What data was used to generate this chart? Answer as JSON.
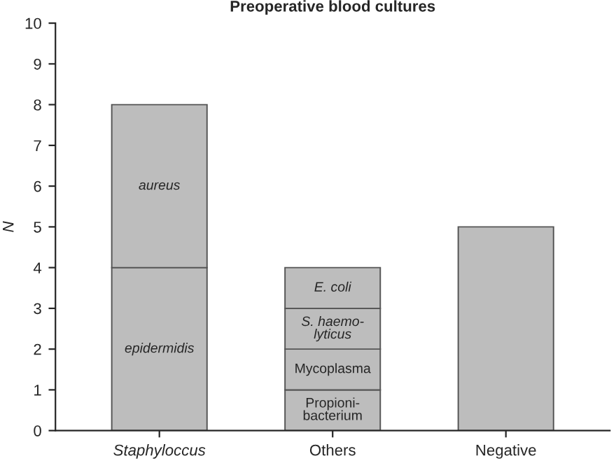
{
  "chart_data": {
    "type": "bar",
    "title": "Preoperative blood cultures",
    "ylabel": "N",
    "categories": [
      "Staphyloccus",
      "Others",
      "Negative"
    ],
    "stacked": true,
    "series": [
      {
        "name": "epidermidis",
        "color": "#bdbdbd",
        "values": [
          4,
          null,
          null
        ]
      },
      {
        "name": "aureus",
        "color": "#bdbdbd",
        "values": [
          4,
          null,
          null
        ]
      },
      {
        "name": "Propioni-\nbacterium",
        "color": "#bdbdbd",
        "values": [
          null,
          1,
          null
        ]
      },
      {
        "name": "Mycoplasma",
        "color": "#bdbdbd",
        "values": [
          null,
          1,
          null
        ]
      },
      {
        "name": "S. haemo-\nlyticus",
        "color": "#bdbdbd",
        "values": [
          null,
          1,
          null
        ]
      },
      {
        "name": "E. coli",
        "color": "#bdbdbd",
        "values": [
          null,
          1,
          null
        ]
      },
      {
        "color": "#bdbdbd",
        "values": [
          null,
          null,
          5
        ]
      }
    ],
    "ylim": [
      0,
      10
    ],
    "yticks": [
      0,
      1,
      2,
      3,
      4,
      5,
      6,
      7,
      8,
      9,
      10
    ],
    "grid": false,
    "legend": false
  }
}
